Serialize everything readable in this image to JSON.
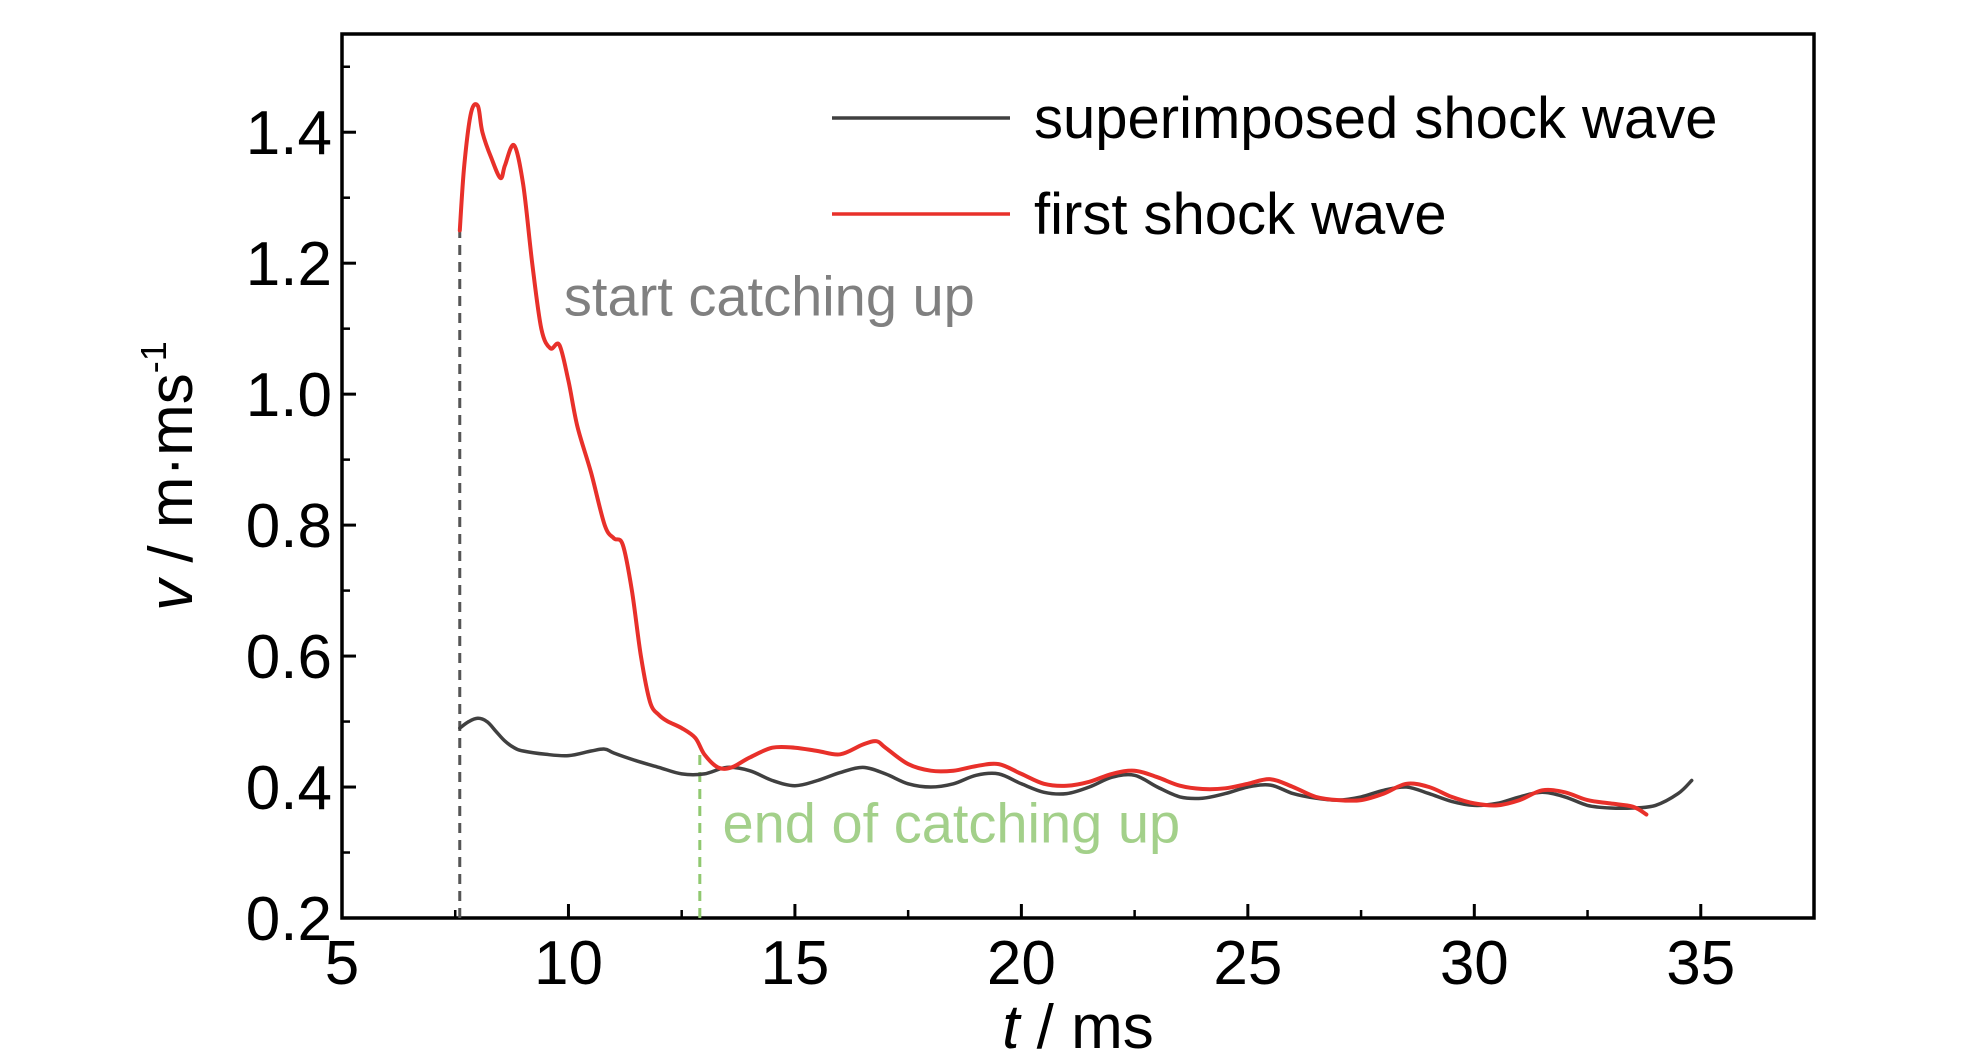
{
  "chart_data": {
    "type": "line",
    "title": "",
    "xlabel": {
      "var": "t",
      "unit": " / ms"
    },
    "ylabel": {
      "var": "v",
      "unit": " / m·ms",
      "sup": "-1"
    },
    "xlim": [
      5,
      37.5
    ],
    "ylim": [
      0.2,
      1.55
    ],
    "xticks": [
      5,
      10,
      15,
      20,
      25,
      30,
      35
    ],
    "xtick_labels": [
      "5",
      "10",
      "15",
      "20",
      "25",
      "30",
      "35"
    ],
    "yticks": [
      0.2,
      0.4,
      0.6,
      0.8,
      1.0,
      1.2,
      1.4
    ],
    "ytick_labels": [
      "0.2",
      "0.4",
      "0.6",
      "0.8",
      "1.0",
      "1.2",
      "1.4"
    ],
    "legend_position": "top-right",
    "grid": false,
    "series": [
      {
        "name": "superimposed shock wave",
        "color": "#404040",
        "x": [
          7.6,
          7.8,
          8.0,
          8.2,
          8.4,
          8.6,
          8.8,
          9.0,
          9.5,
          10.0,
          10.5,
          10.8,
          11.0,
          11.5,
          12.0,
          12.5,
          13.0,
          13.5,
          14.0,
          14.5,
          15.0,
          15.5,
          16.0,
          16.5,
          17.0,
          17.5,
          18.0,
          18.5,
          19.0,
          19.5,
          20.0,
          20.5,
          21.0,
          21.5,
          22.0,
          22.5,
          23.0,
          23.5,
          24.0,
          24.5,
          25.0,
          25.5,
          26.0,
          26.5,
          27.0,
          27.5,
          28.0,
          28.5,
          29.0,
          29.5,
          30.0,
          30.5,
          31.0,
          31.5,
          32.0,
          32.5,
          33.0,
          33.5,
          34.0,
          34.5,
          34.8
        ],
        "y": [
          0.49,
          0.5,
          0.505,
          0.5,
          0.485,
          0.47,
          0.46,
          0.455,
          0.45,
          0.448,
          0.455,
          0.458,
          0.452,
          0.44,
          0.43,
          0.42,
          0.42,
          0.43,
          0.425,
          0.41,
          0.402,
          0.41,
          0.422,
          0.43,
          0.42,
          0.405,
          0.4,
          0.405,
          0.418,
          0.42,
          0.405,
          0.392,
          0.39,
          0.4,
          0.415,
          0.418,
          0.4,
          0.385,
          0.383,
          0.39,
          0.4,
          0.403,
          0.39,
          0.383,
          0.38,
          0.385,
          0.395,
          0.4,
          0.39,
          0.378,
          0.372,
          0.375,
          0.385,
          0.392,
          0.385,
          0.372,
          0.368,
          0.368,
          0.372,
          0.39,
          0.41
        ]
      },
      {
        "name": "first shock wave",
        "color": "#e8302a",
        "x": [
          7.6,
          7.7,
          7.85,
          8.0,
          8.1,
          8.3,
          8.5,
          8.6,
          8.8,
          9.0,
          9.2,
          9.4,
          9.6,
          9.8,
          10.0,
          10.2,
          10.5,
          10.8,
          11.0,
          11.2,
          11.4,
          11.6,
          11.8,
          12.0,
          12.2,
          12.5,
          12.8,
          13.0,
          13.3,
          13.6,
          14.0,
          14.5,
          15.0,
          15.5,
          16.0,
          16.5,
          16.8,
          17.0,
          17.5,
          18.0,
          18.5,
          19.0,
          19.5,
          20.0,
          20.5,
          21.0,
          21.5,
          22.0,
          22.5,
          23.0,
          23.5,
          24.0,
          24.5,
          25.0,
          25.5,
          26.0,
          26.5,
          27.0,
          27.5,
          28.0,
          28.5,
          29.0,
          29.5,
          30.0,
          30.5,
          31.0,
          31.5,
          32.0,
          32.5,
          33.0,
          33.5,
          33.8
        ],
        "y": [
          1.25,
          1.35,
          1.43,
          1.44,
          1.4,
          1.36,
          1.33,
          1.35,
          1.38,
          1.32,
          1.2,
          1.1,
          1.07,
          1.075,
          1.02,
          0.95,
          0.88,
          0.8,
          0.78,
          0.77,
          0.7,
          0.6,
          0.53,
          0.51,
          0.5,
          0.49,
          0.475,
          0.45,
          0.43,
          0.43,
          0.445,
          0.46,
          0.46,
          0.455,
          0.45,
          0.465,
          0.47,
          0.46,
          0.435,
          0.425,
          0.425,
          0.432,
          0.435,
          0.42,
          0.405,
          0.402,
          0.408,
          0.42,
          0.425,
          0.415,
          0.402,
          0.397,
          0.398,
          0.405,
          0.412,
          0.4,
          0.385,
          0.38,
          0.38,
          0.39,
          0.405,
          0.4,
          0.385,
          0.375,
          0.372,
          0.38,
          0.395,
          0.392,
          0.38,
          0.375,
          0.37,
          0.358
        ]
      }
    ],
    "markers": [
      {
        "name": "start-marker",
        "x": 7.6,
        "y_from": 0.2,
        "y_to": 1.25,
        "color": "#555555"
      },
      {
        "name": "end-marker",
        "x": 12.9,
        "y_from": 0.2,
        "y_to": 0.46,
        "color": "#90c870"
      }
    ],
    "annotations": [
      {
        "name": "start-annotation",
        "text": "start catching up",
        "x": 9.9,
        "y": 1.12,
        "color": "#808080"
      },
      {
        "name": "end-annotation",
        "text": "end of catching up",
        "x": 13.4,
        "y": 0.315,
        "color": "#a3d08a"
      }
    ]
  }
}
